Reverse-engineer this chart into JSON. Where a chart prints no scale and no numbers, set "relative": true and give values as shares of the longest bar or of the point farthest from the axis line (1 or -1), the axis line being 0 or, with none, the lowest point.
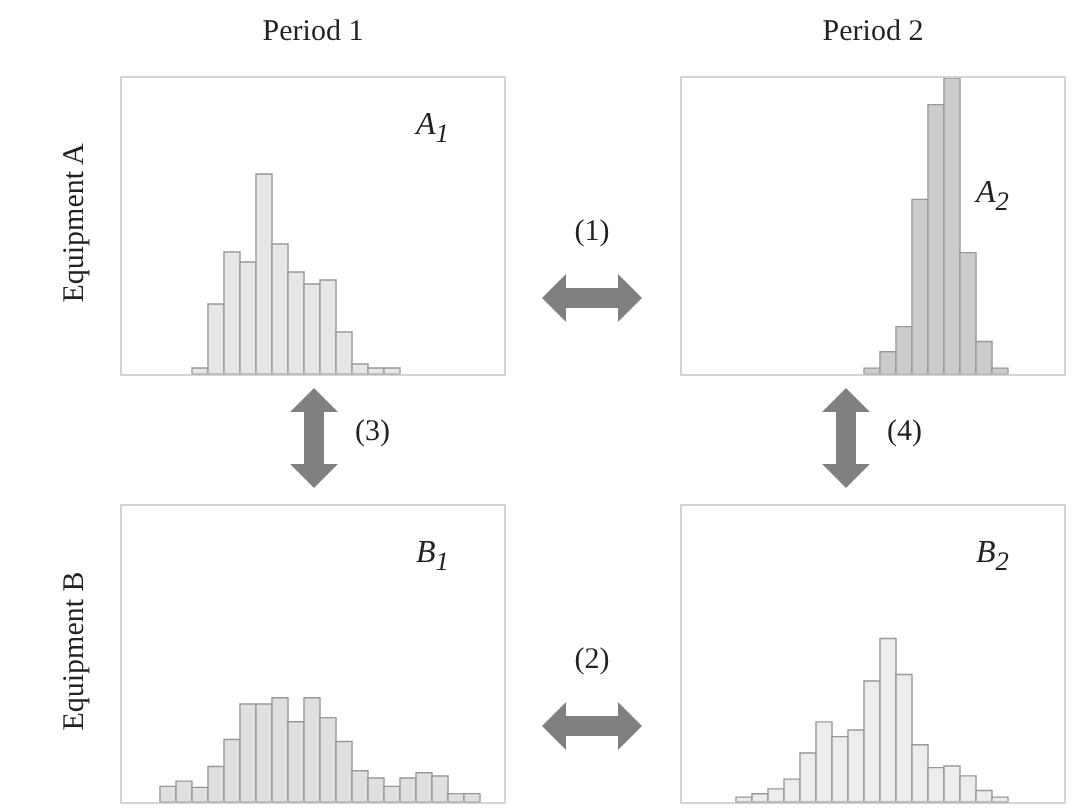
{
  "chart_data": [
    {
      "type": "bar",
      "title": "Period 1",
      "ylabel": "Equipment A",
      "relative": true,
      "color": "#e6e6e6",
      "categories": [
        null,
        null,
        null,
        null,
        null,
        null,
        null,
        null,
        null,
        null,
        null,
        null,
        null
      ],
      "values": [
        0.03,
        0.35,
        0.61,
        0.56,
        1,
        0.65,
        0.51,
        0.45,
        0.47,
        0.21,
        0.05,
        0.03,
        0.03
      ],
      "annotations": [
        "A$_{1}$",
        "(1)",
        "(3)"
      ]
    },
    {
      "type": "bar",
      "title": "Period 2",
      "relative": true,
      "color": "#cccccc",
      "categories": [
        null,
        null,
        null,
        null,
        null,
        null,
        null,
        null,
        null
      ],
      "values": [
        0.02,
        0.075,
        0.16,
        0.59,
        0.91,
        1,
        0.41,
        0.11,
        0.02
      ],
      "annotations": [
        "A$_{2}$",
        "(4)"
      ]
    },
    {
      "type": "bar",
      "ylabel": "Equipment B",
      "relative": true,
      "color": "#e0e0e0",
      "categories": [
        null,
        null,
        null,
        null,
        null,
        null,
        null,
        null,
        null,
        null,
        null,
        null,
        null,
        null,
        null,
        null,
        null,
        null,
        null,
        null
      ],
      "values": [
        0.15,
        0.2,
        0.14,
        0.34,
        0.6,
        0.94,
        0.94,
        1,
        0.77,
        1,
        0.81,
        0.58,
        0.3,
        0.23,
        0.15,
        0.23,
        0.28,
        0.25,
        0.08,
        0.08
      ],
      "annotations": [
        "B$_{1}$",
        "(2)"
      ]
    },
    {
      "type": "bar",
      "relative": true,
      "color": "#ececec",
      "categories": [
        null,
        null,
        null,
        null,
        null,
        null,
        null,
        null,
        null,
        null,
        null,
        null,
        null,
        null,
        null,
        null,
        null
      ],
      "values": [
        0.03,
        0.05,
        0.08,
        0.14,
        0.3,
        0.49,
        0.4,
        0.44,
        0.74,
        1,
        0.78,
        0.35,
        0.21,
        0.22,
        0.16,
        0.07,
        0.03
      ],
      "annotations": [
        "B$_{2}$"
      ]
    }
  ]
}
